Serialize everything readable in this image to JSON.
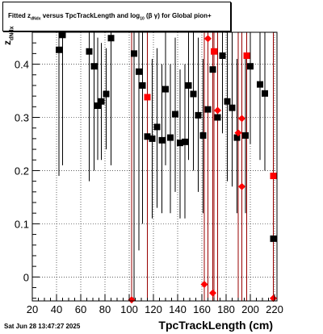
{
  "title_box": {
    "part1": "Fitted  z",
    "sub1": "dNdx",
    "part2": "  versus TpcTrackLength and log",
    "sub2": "10",
    "part3": " (β  γ) for Global pion+"
  },
  "timestamp": "Sat Jun 28 13:47:27 2025",
  "chart_data": {
    "type": "scatter",
    "xlabel": "TpcTrackLength (cm)",
    "ylabel": {
      "main": "z",
      "sub": "dNdx"
    },
    "xlim": [
      20,
      222
    ],
    "ylim": [
      -0.045,
      0.46
    ],
    "xticks": [
      20,
      40,
      60,
      80,
      100,
      120,
      140,
      160,
      180,
      200,
      220
    ],
    "yticks": [
      0,
      0.1,
      0.2,
      0.3,
      0.4
    ],
    "ytick_labels": [
      "0",
      "0.1",
      "0.2",
      "0.3",
      "0.4"
    ],
    "grid": true,
    "series": [
      {
        "color": "#000000",
        "marker": "square",
        "points": [
          {
            "x": 42,
            "y": 0.427,
            "lo": 0.19,
            "hi": 0.46
          },
          {
            "x": 45,
            "y": 0.455,
            "lo": 0.21,
            "hi": 0.46
          },
          {
            "x": 67,
            "y": 0.424,
            "lo": 0.18,
            "hi": 0.46
          },
          {
            "x": 71,
            "y": 0.396,
            "lo": 0.2,
            "hi": 0.46
          },
          {
            "x": 74,
            "y": 0.322,
            "lo": 0.22,
            "hi": 0.45
          },
          {
            "x": 77,
            "y": 0.33,
            "lo": 0.22,
            "hi": 0.44
          },
          {
            "x": 81,
            "y": 0.344,
            "lo": 0.24,
            "hi": 0.43
          },
          {
            "x": 85,
            "y": 0.449,
            "lo": 0.21,
            "hi": 0.46
          },
          {
            "x": 104,
            "y": 0.42,
            "lo": -0.045,
            "hi": 0.46
          },
          {
            "x": 108,
            "y": 0.386,
            "lo": 0.05,
            "hi": 0.46
          },
          {
            "x": 111,
            "y": 0.36,
            "lo": 0.1,
            "hi": 0.46
          },
          {
            "x": 115,
            "y": 0.264,
            "lo": 0.1,
            "hi": 0.43
          },
          {
            "x": 119,
            "y": 0.26,
            "lo": 0.11,
            "hi": 0.41
          },
          {
            "x": 123,
            "y": 0.282,
            "lo": 0.13,
            "hi": 0.43
          },
          {
            "x": 127,
            "y": 0.257,
            "lo": 0.12,
            "hi": 0.4
          },
          {
            "x": 130,
            "y": 0.353,
            "lo": 0.21,
            "hi": 0.46
          },
          {
            "x": 134,
            "y": 0.262,
            "lo": 0.12,
            "hi": 0.4
          },
          {
            "x": 138,
            "y": 0.306,
            "lo": 0.16,
            "hi": 0.45
          },
          {
            "x": 142,
            "y": 0.252,
            "lo": 0.11,
            "hi": 0.39
          },
          {
            "x": 146,
            "y": 0.254,
            "lo": 0.11,
            "hi": 0.4
          },
          {
            "x": 149,
            "y": 0.36,
            "lo": 0.22,
            "hi": 0.46
          },
          {
            "x": 153,
            "y": 0.344,
            "lo": 0.2,
            "hi": 0.46
          },
          {
            "x": 157,
            "y": 0.304,
            "lo": 0.16,
            "hi": 0.45
          },
          {
            "x": 161,
            "y": 0.266,
            "lo": 0.12,
            "hi": 0.41
          },
          {
            "x": 165,
            "y": 0.315,
            "lo": 0.17,
            "hi": 0.46
          },
          {
            "x": 169,
            "y": 0.39,
            "lo": 0.25,
            "hi": 0.46
          },
          {
            "x": 173,
            "y": 0.3,
            "lo": 0.15,
            "hi": 0.45
          },
          {
            "x": 177,
            "y": 0.416,
            "lo": 0.27,
            "hi": 0.46
          },
          {
            "x": 181,
            "y": 0.33,
            "lo": 0.18,
            "hi": 0.46
          },
          {
            "x": 185,
            "y": 0.318,
            "lo": 0.17,
            "hi": 0.46
          },
          {
            "x": 189,
            "y": 0.262,
            "lo": 0.12,
            "hi": 0.41
          },
          {
            "x": 196,
            "y": 0.266,
            "lo": 0.12,
            "hi": 0.41
          },
          {
            "x": 200,
            "y": 0.396,
            "lo": 0.25,
            "hi": 0.46
          },
          {
            "x": 208,
            "y": 0.362,
            "lo": 0.22,
            "hi": 0.46
          },
          {
            "x": 212,
            "y": 0.345,
            "lo": 0.2,
            "hi": 0.46
          },
          {
            "x": 219,
            "y": 0.072,
            "lo": -0.045,
            "hi": 0.22
          }
        ]
      },
      {
        "color": "#ff0000",
        "marker": "square-or-diamond",
        "points": [
          {
            "x": 102,
            "y": -0.043,
            "lo": -0.045,
            "hi": 0.46,
            "marker": "diamond"
          },
          {
            "x": 115,
            "y": 0.338,
            "lo": -0.045,
            "hi": 0.46,
            "marker": "square"
          },
          {
            "x": 162,
            "y": -0.014,
            "lo": -0.045,
            "hi": 0.46,
            "marker": "diamond"
          },
          {
            "x": 165,
            "y": 0.448,
            "lo": -0.045,
            "hi": 0.46,
            "marker": "diamond"
          },
          {
            "x": 169,
            "y": -0.03,
            "lo": -0.045,
            "hi": 0.46,
            "marker": "diamond"
          },
          {
            "x": 170,
            "y": 0.424,
            "lo": -0.045,
            "hi": 0.46,
            "marker": "square"
          },
          {
            "x": 173,
            "y": 0.313,
            "lo": -0.045,
            "hi": 0.46,
            "marker": "diamond"
          },
          {
            "x": 190,
            "y": 0.271,
            "lo": -0.045,
            "hi": 0.46,
            "marker": "diamond"
          },
          {
            "x": 193,
            "y": 0.298,
            "lo": -0.045,
            "hi": 0.46,
            "marker": "diamond"
          },
          {
            "x": 193,
            "y": 0.17,
            "lo": -0.045,
            "hi": 0.46,
            "marker": "diamond"
          },
          {
            "x": 197,
            "y": 0.416,
            "lo": -0.045,
            "hi": 0.46,
            "marker": "square"
          },
          {
            "x": 219,
            "y": 0.19,
            "lo": -0.045,
            "hi": 0.46,
            "marker": "square"
          },
          {
            "x": 219,
            "y": -0.04,
            "lo": -0.045,
            "hi": 0.46,
            "marker": "diamond"
          }
        ]
      }
    ]
  }
}
